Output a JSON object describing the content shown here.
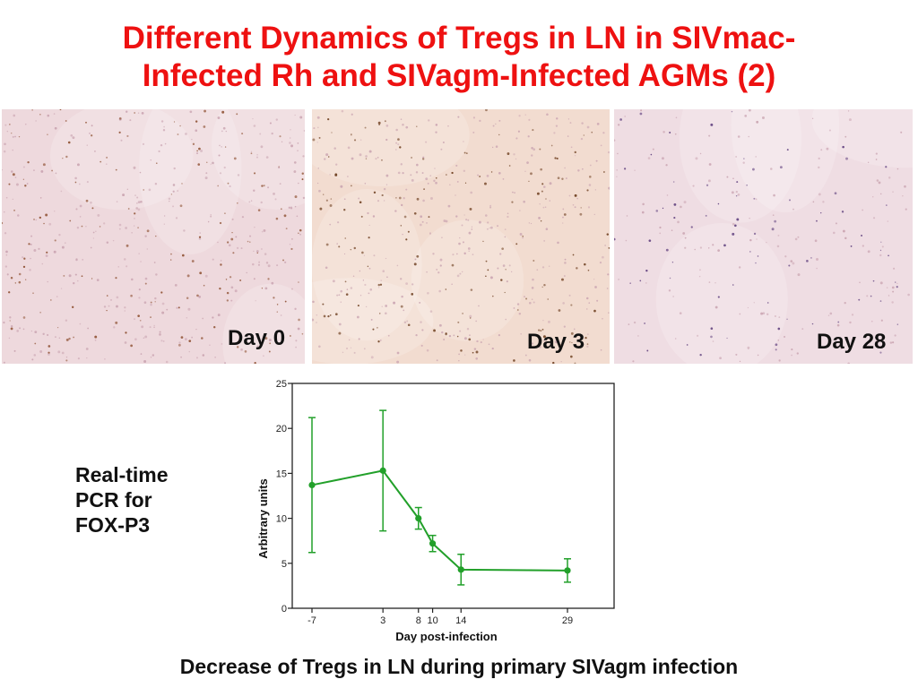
{
  "slide": {
    "title_line1": "Different Dynamics of Tregs in LN in SIVmac-",
    "title_line2": "Infected Rh and SIVagm-Infected AGMs (2)",
    "side_label_line1": "Real-time",
    "side_label_line2": "PCR for",
    "side_label_line3": "FOX-P3",
    "caption": "Decrease of Tregs in LN during primary SIVagm infection"
  },
  "photos": [
    {
      "label": "Day 0",
      "tone": "#eed9dd",
      "spot": "#8a4a2a"
    },
    {
      "label": "Day 3",
      "tone": "#f2dcd0",
      "spot": "#6a3a1a"
    },
    {
      "label": "Day 28",
      "tone": "#efdde3",
      "spot": "#5a3a7a"
    }
  ],
  "chart_data": {
    "type": "line",
    "x": [
      -7,
      3,
      8,
      10,
      14,
      29
    ],
    "x_tick_labels": [
      "-7",
      "3",
      "8",
      "10",
      "14",
      "29"
    ],
    "y": [
      13.7,
      15.3,
      10.0,
      7.2,
      4.3,
      4.2
    ],
    "y_err": [
      7.5,
      6.7,
      1.2,
      0.9,
      1.7,
      1.3
    ],
    "ylim": [
      0,
      25
    ],
    "y_ticks": [
      0,
      5,
      10,
      15,
      20,
      25
    ],
    "y_tick_labels": [
      "0",
      "5",
      "10",
      "15",
      "20",
      "25"
    ],
    "xlabel": "Day post-infection",
    "ylabel": "Arbitrary units",
    "series_color": "#22a02a",
    "grid": false
  }
}
